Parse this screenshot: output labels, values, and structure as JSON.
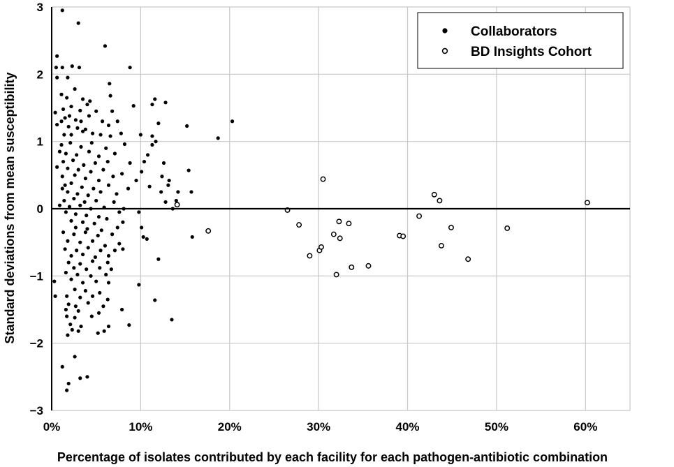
{
  "chart_data": {
    "type": "scatter",
    "xlabel": "Percentage of isolates contributed by each facility for each pathogen-antibiotic combination",
    "ylabel": "Standard deviations from mean susceptibility",
    "xlim": [
      0,
      65
    ],
    "ylim": [
      -3,
      3
    ],
    "x_ticks": [
      0,
      10,
      20,
      30,
      40,
      50,
      60
    ],
    "x_tick_labels": [
      "0%",
      "10%",
      "20%",
      "30%",
      "40%",
      "50%",
      "60%"
    ],
    "y_ticks": [
      -3,
      -2,
      -1,
      0,
      1,
      2,
      3
    ],
    "y_tick_labels": [
      "−3",
      "−2",
      "−1",
      "0",
      "1",
      "2",
      "3"
    ],
    "grid": true,
    "legend_position": "top-right",
    "series": [
      {
        "name": "Collaborators",
        "marker": "filled-circle",
        "points": [
          [
            1.2,
            2.95
          ],
          [
            3.0,
            2.76
          ],
          [
            0.6,
            2.27
          ],
          [
            6.0,
            2.42
          ],
          [
            0.5,
            2.1
          ],
          [
            1.2,
            2.1
          ],
          [
            2.3,
            2.12
          ],
          [
            3.1,
            2.1
          ],
          [
            8.8,
            2.1
          ],
          [
            0.6,
            1.95
          ],
          [
            1.8,
            1.95
          ],
          [
            2.6,
            1.78
          ],
          [
            6.5,
            1.86
          ],
          [
            1.1,
            1.7
          ],
          [
            1.7,
            1.65
          ],
          [
            3.5,
            1.63
          ],
          [
            4.3,
            1.6
          ],
          [
            6.6,
            1.68
          ],
          [
            11.6,
            1.63
          ],
          [
            12.8,
            1.58
          ],
          [
            9.2,
            1.53
          ],
          [
            1.3,
            1.48
          ],
          [
            2.2,
            1.52
          ],
          [
            3.2,
            1.46
          ],
          [
            4.0,
            1.55
          ],
          [
            5.0,
            1.45
          ],
          [
            6.8,
            1.45
          ],
          [
            11.3,
            1.55
          ],
          [
            0.4,
            1.43
          ],
          [
            1.1,
            1.3
          ],
          [
            1.5,
            1.35
          ],
          [
            2.0,
            1.38
          ],
          [
            2.7,
            1.32
          ],
          [
            3.3,
            1.3
          ],
          [
            4.2,
            1.38
          ],
          [
            5.7,
            1.3
          ],
          [
            6.4,
            1.24
          ],
          [
            7.4,
            1.3
          ],
          [
            12.0,
            1.27
          ],
          [
            15.2,
            1.23
          ],
          [
            20.3,
            1.3
          ],
          [
            0.6,
            1.25
          ],
          [
            1.9,
            1.22
          ],
          [
            2.9,
            1.2
          ],
          [
            3.8,
            1.18
          ],
          [
            4.6,
            1.12
          ],
          [
            1.4,
            1.1
          ],
          [
            2.2,
            1.1
          ],
          [
            3.5,
            1.15
          ],
          [
            5.5,
            1.1
          ],
          [
            6.6,
            1.08
          ],
          [
            7.8,
            1.12
          ],
          [
            10.0,
            1.1
          ],
          [
            11.3,
            1.08
          ],
          [
            18.7,
            1.05
          ],
          [
            11.7,
            1.0
          ],
          [
            1.1,
            0.95
          ],
          [
            2.1,
            0.98
          ],
          [
            3.3,
            0.92
          ],
          [
            4.5,
            0.98
          ],
          [
            6.1,
            0.9
          ],
          [
            8.2,
            0.96
          ],
          [
            11.3,
            0.95
          ],
          [
            0.9,
            0.85
          ],
          [
            1.6,
            0.82
          ],
          [
            2.8,
            0.8
          ],
          [
            4.2,
            0.85
          ],
          [
            5.3,
            0.78
          ],
          [
            7.1,
            0.82
          ],
          [
            10.8,
            0.8
          ],
          [
            1.3,
            0.7
          ],
          [
            2.4,
            0.72
          ],
          [
            3.6,
            0.65
          ],
          [
            4.9,
            0.68
          ],
          [
            6.3,
            0.7
          ],
          [
            8.8,
            0.68
          ],
          [
            10.4,
            0.7
          ],
          [
            12.6,
            0.68
          ],
          [
            0.6,
            0.62
          ],
          [
            1.8,
            0.6
          ],
          [
            3.0,
            0.58
          ],
          [
            4.4,
            0.55
          ],
          [
            5.8,
            0.58
          ],
          [
            7.9,
            0.52
          ],
          [
            10.1,
            0.55
          ],
          [
            15.4,
            0.57
          ],
          [
            1.2,
            0.48
          ],
          [
            2.6,
            0.5
          ],
          [
            3.8,
            0.45
          ],
          [
            5.3,
            0.42
          ],
          [
            6.9,
            0.48
          ],
          [
            9.5,
            0.42
          ],
          [
            12.4,
            0.48
          ],
          [
            13.2,
            0.42
          ],
          [
            1.5,
            0.35
          ],
          [
            2.2,
            0.38
          ],
          [
            3.4,
            0.32
          ],
          [
            4.7,
            0.3
          ],
          [
            6.4,
            0.35
          ],
          [
            8.6,
            0.3
          ],
          [
            11.0,
            0.33
          ],
          [
            13.1,
            0.35
          ],
          [
            1.2,
            0.3
          ],
          [
            1.8,
            0.25
          ],
          [
            2.9,
            0.22
          ],
          [
            4.1,
            0.2
          ],
          [
            5.5,
            0.25
          ],
          [
            7.3,
            0.22
          ],
          [
            12.3,
            0.25
          ],
          [
            14.2,
            0.25
          ],
          [
            15.7,
            0.25
          ],
          [
            1.4,
            0.12
          ],
          [
            2.5,
            0.15
          ],
          [
            3.7,
            0.1
          ],
          [
            5.0,
            0.12
          ],
          [
            7.0,
            0.1
          ],
          [
            12.8,
            0.1
          ],
          [
            14.0,
            0.12
          ],
          [
            0.9,
            0.05
          ],
          [
            2.0,
            0.03
          ],
          [
            3.2,
            0.05
          ],
          [
            4.4,
            0.0
          ],
          [
            5.9,
            0.02
          ],
          [
            8.1,
            0.0
          ],
          [
            13.6,
            0.0
          ],
          [
            1.6,
            -0.05
          ],
          [
            2.7,
            -0.08
          ],
          [
            3.9,
            -0.1
          ],
          [
            5.3,
            -0.12
          ],
          [
            7.6,
            -0.05
          ],
          [
            9.8,
            -0.05
          ],
          [
            2.2,
            -0.18
          ],
          [
            3.5,
            -0.2
          ],
          [
            4.8,
            -0.22
          ],
          [
            6.2,
            -0.15
          ],
          [
            8.0,
            -0.2
          ],
          [
            2.7,
            -0.28
          ],
          [
            4.0,
            -0.3
          ],
          [
            5.6,
            -0.32
          ],
          [
            7.4,
            -0.28
          ],
          [
            10.1,
            -0.28
          ],
          [
            1.3,
            -0.35
          ],
          [
            2.5,
            -0.38
          ],
          [
            3.8,
            -0.35
          ],
          [
            5.2,
            -0.4
          ],
          [
            6.8,
            -0.38
          ],
          [
            10.3,
            -0.42
          ],
          [
            10.7,
            -0.45
          ],
          [
            15.8,
            -0.42
          ],
          [
            1.8,
            -0.48
          ],
          [
            3.2,
            -0.5
          ],
          [
            4.6,
            -0.48
          ],
          [
            6.0,
            -0.55
          ],
          [
            7.6,
            -0.52
          ],
          [
            1.5,
            -0.6
          ],
          [
            2.8,
            -0.62
          ],
          [
            4.1,
            -0.58
          ],
          [
            5.5,
            -0.62
          ],
          [
            7.1,
            -0.62
          ],
          [
            8.0,
            -0.6
          ],
          [
            2.2,
            -0.7
          ],
          [
            3.5,
            -0.68
          ],
          [
            4.9,
            -0.72
          ],
          [
            6.4,
            -0.7
          ],
          [
            12.0,
            -0.75
          ],
          [
            1.9,
            -0.8
          ],
          [
            3.2,
            -0.82
          ],
          [
            4.6,
            -0.78
          ],
          [
            6.3,
            -0.8
          ],
          [
            2.5,
            -0.88
          ],
          [
            3.9,
            -0.9
          ],
          [
            5.4,
            -0.88
          ],
          [
            6.7,
            -0.9
          ],
          [
            1.6,
            -0.95
          ],
          [
            2.9,
            -0.98
          ],
          [
            4.4,
            -1.0
          ],
          [
            6.1,
            -0.98
          ],
          [
            0.3,
            -1.08
          ],
          [
            2.2,
            -1.05
          ],
          [
            3.5,
            -1.1
          ],
          [
            5.0,
            -1.08
          ],
          [
            6.4,
            -1.1
          ],
          [
            9.8,
            -1.13
          ],
          [
            2.6,
            -1.2
          ],
          [
            3.8,
            -1.22
          ],
          [
            5.4,
            -1.25
          ],
          [
            0.4,
            -1.3
          ],
          [
            1.7,
            -1.3
          ],
          [
            3.2,
            -1.32
          ],
          [
            4.6,
            -1.3
          ],
          [
            6.3,
            -1.35
          ],
          [
            11.6,
            -1.36
          ],
          [
            1.9,
            -1.42
          ],
          [
            2.7,
            -1.45
          ],
          [
            4.1,
            -1.4
          ],
          [
            5.8,
            -1.45
          ],
          [
            1.6,
            -1.5
          ],
          [
            3.0,
            -1.52
          ],
          [
            5.3,
            -1.55
          ],
          [
            7.9,
            -1.5
          ],
          [
            1.7,
            -1.6
          ],
          [
            2.6,
            -1.62
          ],
          [
            4.5,
            -1.6
          ],
          [
            13.5,
            -1.65
          ],
          [
            2.1,
            -1.72
          ],
          [
            3.3,
            -1.75
          ],
          [
            6.4,
            -1.75
          ],
          [
            8.7,
            -1.73
          ],
          [
            2.3,
            -1.8
          ],
          [
            3.0,
            -1.82
          ],
          [
            5.2,
            -1.85
          ],
          [
            5.9,
            -1.82
          ],
          [
            1.8,
            -1.88
          ],
          [
            2.6,
            -2.2
          ],
          [
            1.2,
            -2.35
          ],
          [
            3.2,
            -2.52
          ],
          [
            4.0,
            -2.5
          ],
          [
            1.9,
            -2.6
          ],
          [
            1.7,
            -2.7
          ]
        ]
      },
      {
        "name": "BD Insights Cohort",
        "marker": "open-circle",
        "points": [
          [
            14.1,
            0.06
          ],
          [
            17.6,
            -0.33
          ],
          [
            26.5,
            -0.02
          ],
          [
            27.8,
            -0.24
          ],
          [
            29.0,
            -0.7
          ],
          [
            30.1,
            -0.62
          ],
          [
            30.3,
            -0.57
          ],
          [
            30.5,
            0.44
          ],
          [
            31.7,
            -0.38
          ],
          [
            32.0,
            -0.98
          ],
          [
            32.3,
            -0.19
          ],
          [
            32.4,
            -0.44
          ],
          [
            33.4,
            -0.22
          ],
          [
            33.7,
            -0.87
          ],
          [
            35.6,
            -0.85
          ],
          [
            39.1,
            -0.4
          ],
          [
            39.5,
            -0.41
          ],
          [
            41.3,
            -0.11
          ],
          [
            43.0,
            0.21
          ],
          [
            43.6,
            0.12
          ],
          [
            43.8,
            -0.55
          ],
          [
            44.9,
            -0.28
          ],
          [
            46.8,
            -0.75
          ],
          [
            51.2,
            -0.29
          ],
          [
            60.2,
            0.09
          ]
        ]
      }
    ]
  }
}
